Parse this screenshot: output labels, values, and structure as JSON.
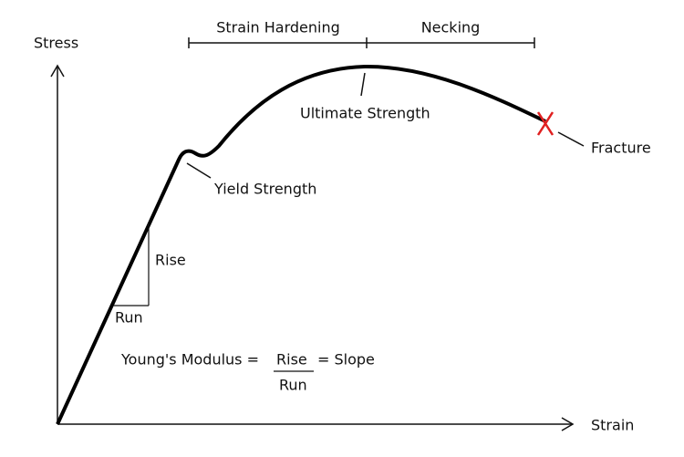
{
  "axes": {
    "y_label": "Stress",
    "x_label": "Strain"
  },
  "regions": [
    {
      "label": "Strain Hardening"
    },
    {
      "label": "Necking"
    }
  ],
  "annotations": {
    "ultimate": "Ultimate Strength",
    "yield": "Yield Strength",
    "fracture": "Fracture",
    "rise": "Rise",
    "run": "Run"
  },
  "formula": {
    "lhs": "Young's Modulus =",
    "numerator": "Rise",
    "denominator": "Run",
    "rhs": "= Slope"
  }
}
